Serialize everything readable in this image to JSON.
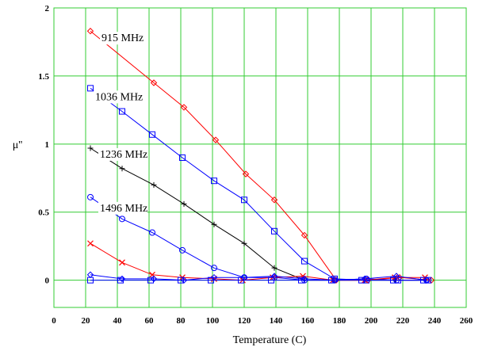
{
  "chart_data": {
    "type": "line",
    "title": "",
    "xlabel": "Temperature (C)",
    "ylabel": "μ''",
    "xlim": [
      0,
      260
    ],
    "ylim": [
      -0.2,
      2
    ],
    "xticks": [
      0,
      20,
      40,
      60,
      80,
      100,
      120,
      140,
      160,
      180,
      200,
      220,
      240,
      260
    ],
    "yticks": [
      0,
      0.5,
      1,
      1.5,
      2
    ],
    "grid": true,
    "grid_color": "#33cc33",
    "series": [
      {
        "name": "915 MHz",
        "color": "#ff0000",
        "marker": "diamond",
        "x": [
          23,
          63,
          82,
          102,
          121,
          139,
          158,
          178,
          198,
          218,
          238
        ],
        "y": [
          1.83,
          1.45,
          1.27,
          1.03,
          0.78,
          0.59,
          0.33,
          0.0,
          0.0,
          0.02,
          0.0
        ]
      },
      {
        "name": "1036 MHz",
        "color": "#0000ff",
        "marker": "square",
        "x": [
          23,
          43,
          62,
          81,
          101,
          120,
          139,
          158,
          177,
          197,
          217,
          236
        ],
        "y": [
          1.41,
          1.24,
          1.07,
          0.9,
          0.73,
          0.59,
          0.36,
          0.14,
          0.01,
          0.0,
          0.0,
          0.0
        ]
      },
      {
        "name": "1236 MHz",
        "color": "#000000",
        "marker": "plus",
        "x": [
          23,
          43,
          63,
          82,
          101,
          120,
          139,
          158,
          176,
          196,
          215,
          234
        ],
        "y": [
          0.97,
          0.82,
          0.7,
          0.56,
          0.41,
          0.27,
          0.09,
          0.0,
          0.0,
          0.0,
          0.0,
          0.0
        ]
      },
      {
        "name": "1496 MHz",
        "color": "#0000ff",
        "marker": "circle",
        "x": [
          23,
          43,
          62,
          81,
          101,
          120,
          139,
          158,
          177,
          197,
          216,
          235
        ],
        "y": [
          0.61,
          0.45,
          0.35,
          0.22,
          0.09,
          0.02,
          0.02,
          0.0,
          0.0,
          0.01,
          0.0,
          0.0
        ]
      },
      {
        "name": "",
        "color": "#ff0000",
        "marker": "x",
        "x": [
          23,
          43,
          62,
          81,
          101,
          119,
          138,
          157,
          176,
          196,
          215,
          234
        ],
        "y": [
          0.27,
          0.13,
          0.04,
          0.02,
          0.01,
          0.0,
          0.02,
          0.03,
          0.0,
          0.0,
          0.02,
          0.02
        ]
      },
      {
        "name": "",
        "color": "#0000ff",
        "marker": "diamond",
        "x": [
          23,
          43,
          63,
          82,
          101,
          120,
          139,
          158,
          177,
          196,
          216,
          235
        ],
        "y": [
          0.04,
          0.01,
          0.01,
          0.0,
          0.02,
          0.02,
          0.03,
          0.01,
          0.0,
          0.01,
          0.03,
          0.0
        ]
      },
      {
        "name": "",
        "color": "#0000ff",
        "marker": "square",
        "x": [
          23,
          42,
          61,
          80,
          99,
          118,
          137,
          156,
          175,
          194,
          214,
          233
        ],
        "y": [
          0.0,
          0.0,
          0.0,
          0.0,
          0.0,
          0.0,
          0.0,
          0.0,
          0.0,
          0.0,
          0.0,
          0.0
        ]
      }
    ]
  }
}
